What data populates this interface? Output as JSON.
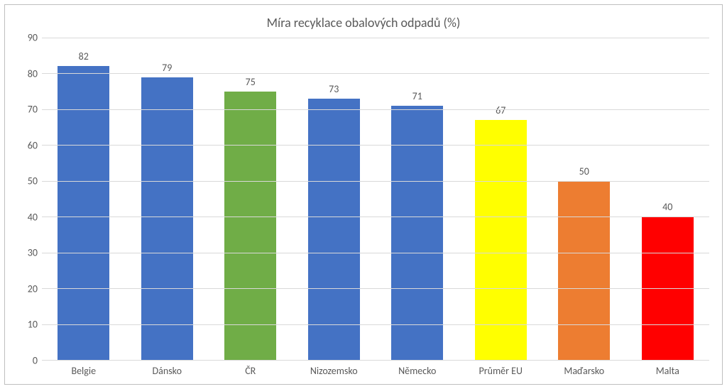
{
  "chart": {
    "type": "bar",
    "title": "Míra recyklace obalových odpadů (%)",
    "title_fontsize": 18,
    "label_fontsize": 14,
    "background_color": "#ffffff",
    "border_color": "#bfbfbf",
    "grid_color": "#d9d9d9",
    "text_color": "#595959",
    "ylim": [
      0,
      90
    ],
    "ytick_step": 10,
    "yticks": [
      0,
      10,
      20,
      30,
      40,
      50,
      60,
      70,
      80,
      90
    ],
    "bar_width": 0.62,
    "categories": [
      "Belgie",
      "Dánsko",
      "ČR",
      "Nizozemsko",
      "Německo",
      "Průměr EU",
      "Maďarsko",
      "Malta"
    ],
    "values": [
      82,
      79,
      75,
      73,
      71,
      67,
      50,
      40
    ],
    "bar_colors": [
      "#4472c4",
      "#4472c4",
      "#70ad47",
      "#4472c4",
      "#4472c4",
      "#ffff00",
      "#ed7d31",
      "#ff0000"
    ]
  }
}
